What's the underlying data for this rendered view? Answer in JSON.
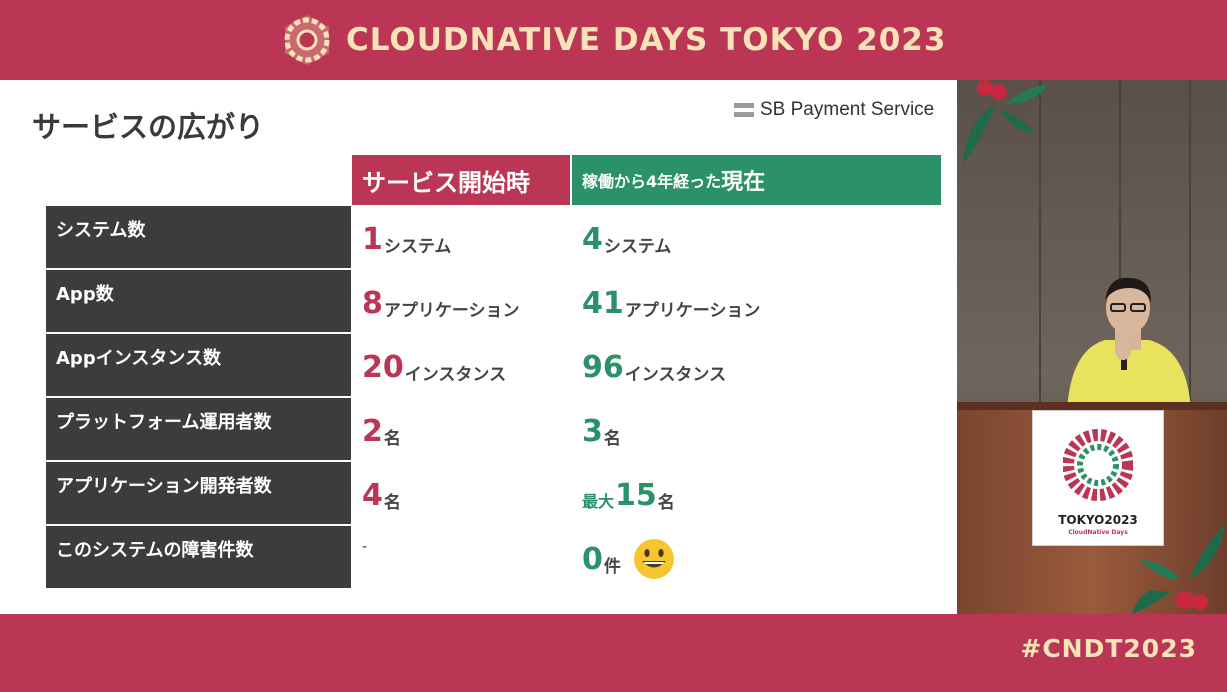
{
  "event": {
    "title": "CLOUDNATIVE DAYS TOKYO 2023",
    "hashtag": "#CNDT2023",
    "brand_color": "#bb3654",
    "title_color": "#f6e3b8"
  },
  "slide": {
    "title": "サービスの広がり",
    "brand": "SB Payment Service",
    "columns": {
      "start": "サービス開始時",
      "now_prefix": "稼働から4年経った",
      "now_main": "現在"
    },
    "rows": [
      {
        "label": "システム数",
        "start_num": "1",
        "start_unit": "システム",
        "now_pre": "",
        "now_num": "4",
        "now_unit": "システム"
      },
      {
        "label": "App数",
        "start_num": "8",
        "start_unit": "アプリケーション",
        "now_pre": "",
        "now_num": "41",
        "now_unit": "アプリケーション"
      },
      {
        "label": "Appインスタンス数",
        "start_num": "20",
        "start_unit": "インスタンス",
        "now_pre": "",
        "now_num": "96",
        "now_unit": "インスタンス"
      },
      {
        "label": "プラットフォーム運用者数",
        "start_num": "2",
        "start_unit": "名",
        "now_pre": "",
        "now_num": "3",
        "now_unit": "名"
      },
      {
        "label": "アプリケーション開発者数",
        "start_num": "4",
        "start_unit": "名",
        "now_pre": "最大",
        "now_num": "15",
        "now_unit": "名"
      },
      {
        "label": "このシステムの障害件数",
        "start_dash": "-",
        "now_pre": "",
        "now_num": "0",
        "now_unit": "件",
        "now_icon": "grinning-face-icon"
      }
    ],
    "colors": {
      "start": "#bb3654",
      "now": "#2a9169",
      "label_bg": "#3c3c3c"
    }
  },
  "camera": {
    "sign_title": "TOKYO2023",
    "sign_subtitle": "CloudNative Days"
  }
}
